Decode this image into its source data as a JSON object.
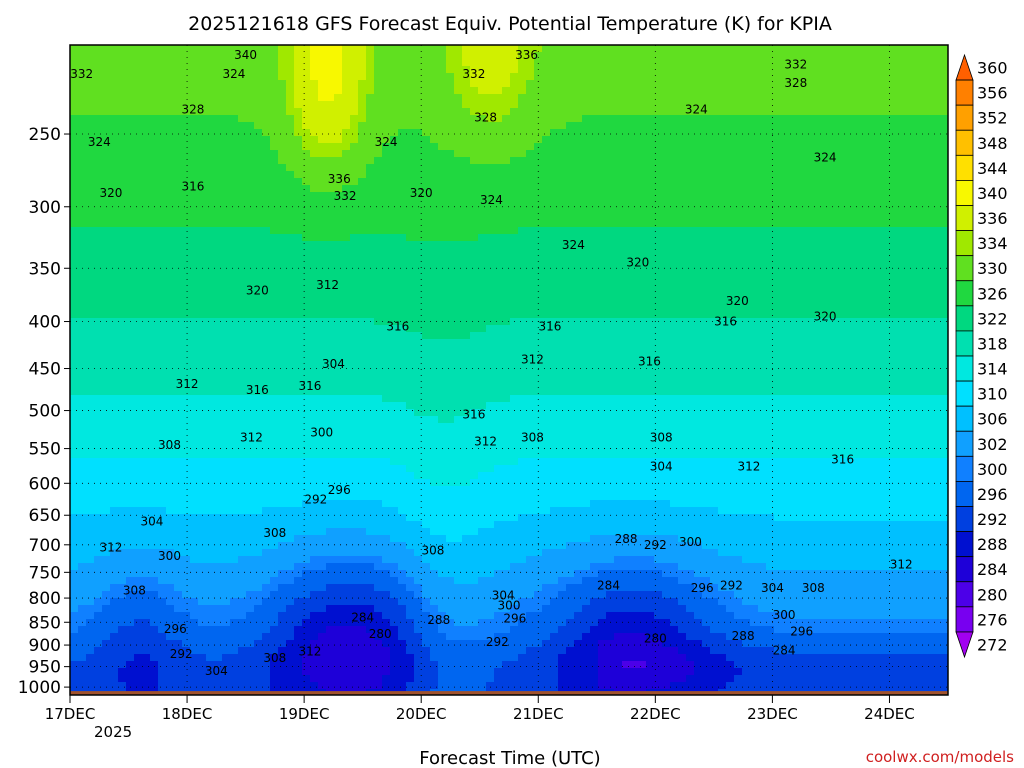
{
  "chart_data": {
    "type": "heatmap",
    "title": "2025121618 GFS Forecast Equiv. Potential Temperature (K) for KPIA",
    "xlabel": "Forecast Time (UTC)",
    "ylabel": "",
    "credit": "coolwx.com/models",
    "x_ticks": [
      "17DEC",
      "18DEC",
      "19DEC",
      "20DEC",
      "21DEC",
      "22DEC",
      "23DEC",
      "24DEC"
    ],
    "x_tick_positions_days": [
      0,
      1,
      2,
      3,
      4,
      5,
      6,
      7
    ],
    "x_sublabel": "2025",
    "x_range_days": [
      0,
      7.5
    ],
    "y_ticks": [
      250,
      300,
      350,
      400,
      450,
      500,
      550,
      600,
      650,
      700,
      750,
      800,
      850,
      900,
      950,
      1000
    ],
    "y_range_hpa": [
      200,
      1020
    ],
    "colorbar_levels": [
      272,
      276,
      280,
      284,
      288,
      292,
      296,
      300,
      302,
      306,
      310,
      314,
      318,
      322,
      326,
      330,
      334,
      336,
      340,
      344,
      348,
      352,
      356,
      360
    ],
    "colorbar_colors": [
      "#a200f0",
      "#7800f0",
      "#4c00e8",
      "#1e00d8",
      "#0010d0",
      "#0040e0",
      "#0066f0",
      "#1080ff",
      "#10a0ff",
      "#00c0ff",
      "#00e0ff",
      "#00e8e0",
      "#00e0b0",
      "#00d880",
      "#20d840",
      "#60e020",
      "#a0e800",
      "#d0f000",
      "#f8f800",
      "#ffe000",
      "#ffc000",
      "#ffa000",
      "#ff8000",
      "#ff6000"
    ],
    "contour_labels": [
      {
        "t": 0.1,
        "p": 215,
        "v": "332"
      },
      {
        "t": 0.25,
        "p": 255,
        "v": "324"
      },
      {
        "t": 0.35,
        "p": 290,
        "v": "320"
      },
      {
        "t": 1.5,
        "p": 205,
        "v": "340"
      },
      {
        "t": 1.4,
        "p": 215,
        "v": "324"
      },
      {
        "t": 1.05,
        "p": 235,
        "v": "328"
      },
      {
        "t": 1.05,
        "p": 285,
        "v": "316"
      },
      {
        "t": 1.6,
        "p": 370,
        "v": "320"
      },
      {
        "t": 1.0,
        "p": 468,
        "v": "312"
      },
      {
        "t": 1.6,
        "p": 475,
        "v": "316"
      },
      {
        "t": 2.05,
        "p": 470,
        "v": "316"
      },
      {
        "t": 0.85,
        "p": 545,
        "v": "308"
      },
      {
        "t": 1.55,
        "p": 535,
        "v": "312"
      },
      {
        "t": 0.7,
        "p": 660,
        "v": "304"
      },
      {
        "t": 0.35,
        "p": 705,
        "v": "312"
      },
      {
        "t": 0.85,
        "p": 720,
        "v": "300"
      },
      {
        "t": 0.55,
        "p": 785,
        "v": "308"
      },
      {
        "t": 1.75,
        "p": 680,
        "v": "308"
      },
      {
        "t": 0.9,
        "p": 865,
        "v": "296"
      },
      {
        "t": 0.95,
        "p": 920,
        "v": "292"
      },
      {
        "t": 1.25,
        "p": 960,
        "v": "304"
      },
      {
        "t": 1.75,
        "p": 930,
        "v": "308"
      },
      {
        "t": 2.05,
        "p": 915,
        "v": "312"
      },
      {
        "t": 2.2,
        "p": 365,
        "v": "312"
      },
      {
        "t": 2.3,
        "p": 280,
        "v": "336"
      },
      {
        "t": 2.35,
        "p": 292,
        "v": "332"
      },
      {
        "t": 2.25,
        "p": 445,
        "v": "304"
      },
      {
        "t": 2.15,
        "p": 528,
        "v": "300"
      },
      {
        "t": 2.3,
        "p": 610,
        "v": "296"
      },
      {
        "t": 2.1,
        "p": 625,
        "v": "292"
      },
      {
        "t": 2.5,
        "p": 840,
        "v": "284"
      },
      {
        "t": 2.65,
        "p": 875,
        "v": "280"
      },
      {
        "t": 2.7,
        "p": 255,
        "v": "324"
      },
      {
        "t": 3.0,
        "p": 290,
        "v": "320"
      },
      {
        "t": 2.8,
        "p": 405,
        "v": "316"
      },
      {
        "t": 3.1,
        "p": 710,
        "v": "308"
      },
      {
        "t": 3.15,
        "p": 845,
        "v": "288"
      },
      {
        "t": 3.45,
        "p": 215,
        "v": "332"
      },
      {
        "t": 3.55,
        "p": 240,
        "v": "328"
      },
      {
        "t": 3.6,
        "p": 295,
        "v": "324"
      },
      {
        "t": 3.45,
        "p": 505,
        "v": "316"
      },
      {
        "t": 3.55,
        "p": 540,
        "v": "312"
      },
      {
        "t": 3.7,
        "p": 795,
        "v": "304"
      },
      {
        "t": 3.75,
        "p": 815,
        "v": "300"
      },
      {
        "t": 3.8,
        "p": 842,
        "v": "296"
      },
      {
        "t": 3.65,
        "p": 893,
        "v": "292"
      },
      {
        "t": 3.9,
        "p": 205,
        "v": "336"
      },
      {
        "t": 4.3,
        "p": 330,
        "v": "324"
      },
      {
        "t": 4.1,
        "p": 405,
        "v": "316"
      },
      {
        "t": 3.95,
        "p": 440,
        "v": "312"
      },
      {
        "t": 3.95,
        "p": 535,
        "v": "308"
      },
      {
        "t": 4.75,
        "p": 690,
        "v": "288"
      },
      {
        "t": 5.0,
        "p": 700,
        "v": "292"
      },
      {
        "t": 5.3,
        "p": 695,
        "v": "300"
      },
      {
        "t": 4.6,
        "p": 775,
        "v": "284"
      },
      {
        "t": 4.85,
        "p": 345,
        "v": "320"
      },
      {
        "t": 5.05,
        "p": 535,
        "v": "308"
      },
      {
        "t": 5.05,
        "p": 575,
        "v": "304"
      },
      {
        "t": 4.95,
        "p": 442,
        "v": "316"
      },
      {
        "t": 5.35,
        "p": 235,
        "v": "324"
      },
      {
        "t": 5.4,
        "p": 780,
        "v": "296"
      },
      {
        "t": 5.65,
        "p": 775,
        "v": "292"
      },
      {
        "t": 5.0,
        "p": 885,
        "v": "280"
      },
      {
        "t": 5.75,
        "p": 880,
        "v": "288"
      },
      {
        "t": 6.0,
        "p": 780,
        "v": "304"
      },
      {
        "t": 6.35,
        "p": 780,
        "v": "308"
      },
      {
        "t": 6.1,
        "p": 835,
        "v": "300"
      },
      {
        "t": 6.25,
        "p": 870,
        "v": "296"
      },
      {
        "t": 6.1,
        "p": 912,
        "v": "284"
      },
      {
        "t": 5.8,
        "p": 575,
        "v": "312"
      },
      {
        "t": 5.7,
        "p": 380,
        "v": "320"
      },
      {
        "t": 5.6,
        "p": 400,
        "v": "316"
      },
      {
        "t": 6.2,
        "p": 210,
        "v": "332"
      },
      {
        "t": 6.2,
        "p": 220,
        "v": "328"
      },
      {
        "t": 6.45,
        "p": 265,
        "v": "324"
      },
      {
        "t": 6.45,
        "p": 395,
        "v": "320"
      },
      {
        "t": 6.6,
        "p": 565,
        "v": "316"
      },
      {
        "t": 7.1,
        "p": 735,
        "v": "312"
      }
    ]
  }
}
